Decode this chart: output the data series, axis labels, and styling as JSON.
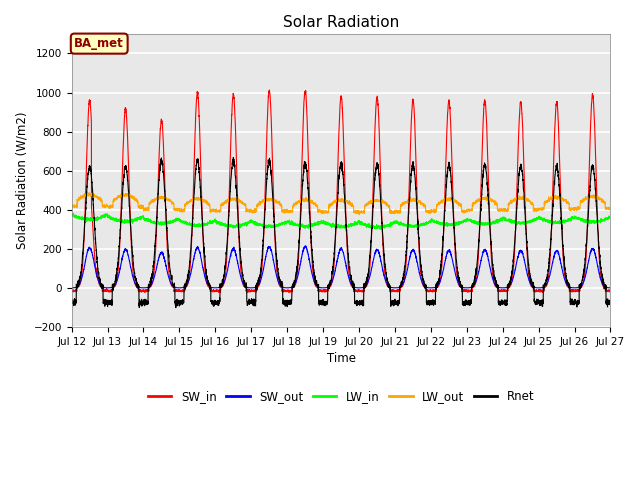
{
  "title": "Solar Radiation",
  "ylabel": "Solar Radiation (W/m2)",
  "xlabel": "Time",
  "ylim": [
    -200,
    1300
  ],
  "yticks": [
    -200,
    0,
    200,
    400,
    600,
    800,
    1000,
    1200
  ],
  "n_days": 16,
  "points_per_day": 288,
  "colors": {
    "SW_in": "red",
    "SW_out": "blue",
    "LW_in": "#00FF00",
    "LW_out": "orange",
    "Rnet": "black"
  },
  "annotation_text": "BA_met",
  "annotation_color": "#8B0000",
  "annotation_bg": "#FFFFC0",
  "bg_color": "#E8E8E8",
  "grid_color": "white",
  "legend_labels": [
    "SW_in",
    "SW_out",
    "LW_in",
    "LW_out",
    "Rnet"
  ],
  "peak_SWin": [
    960,
    960,
    920,
    860,
    1000,
    990,
    1010,
    1010,
    980,
    975,
    960,
    955,
    960,
    950,
    950,
    990
  ],
  "peak_SWout": [
    200,
    205,
    195,
    180,
    205,
    200,
    210,
    210,
    200,
    195,
    195,
    190,
    195,
    190,
    190,
    200
  ],
  "base_LWin": [
    385,
    375,
    365,
    355,
    345,
    340,
    340,
    340,
    338,
    335,
    340,
    348,
    353,
    358,
    360,
    363
  ],
  "base_LWout": [
    420,
    418,
    415,
    402,
    396,
    394,
    393,
    391,
    389,
    388,
    390,
    393,
    398,
    400,
    404,
    408
  ],
  "peak_Rnet": [
    610,
    620,
    620,
    650,
    650,
    650,
    650,
    640,
    635,
    635,
    630,
    630,
    630,
    625,
    620,
    625
  ]
}
